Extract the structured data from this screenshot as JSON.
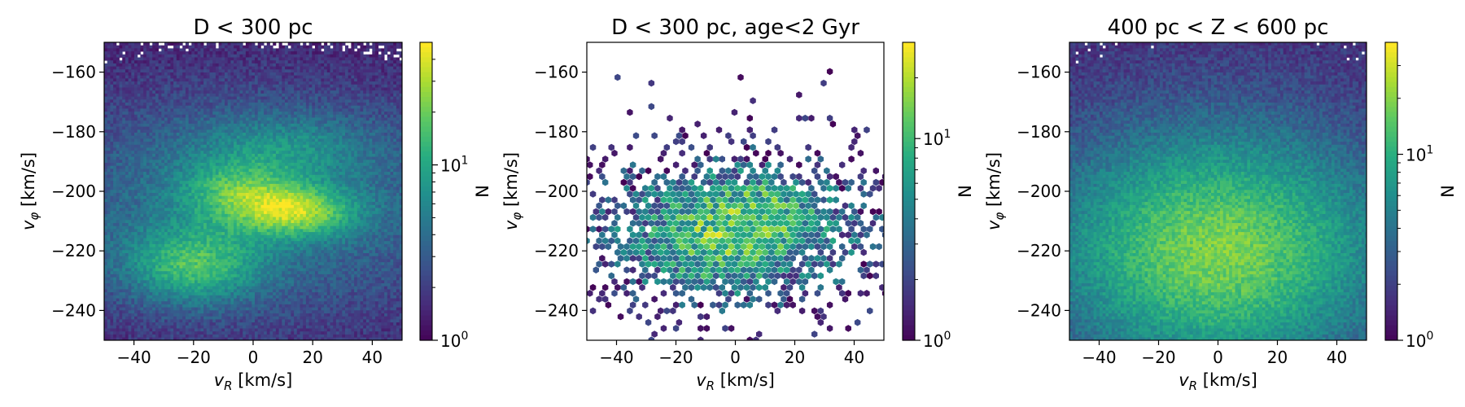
{
  "chart_data": [
    {
      "type": "heatmap",
      "title": "D < 300 pc",
      "xlabel": "v_R [km/s]",
      "ylabel": "v_φ [km/s]",
      "xlim": [
        -50,
        50
      ],
      "ylim": [
        -250,
        -150
      ],
      "xticks": [
        "−40",
        "−20",
        "0",
        "20",
        "40"
      ],
      "xtick_values": [
        -40,
        -20,
        0,
        20,
        40
      ],
      "yticks": [
        "−160",
        "−180",
        "−200",
        "−220",
        "−240"
      ],
      "ytick_values": [
        -160,
        -180,
        -200,
        -220,
        -240
      ],
      "colorbar": {
        "label": "N",
        "scale": "log",
        "ticks": [
          "10",
          "10"
        ],
        "tick_exponents": [
          "0",
          "1"
        ],
        "tick_values": [
          1,
          10
        ],
        "max": 50,
        "colormap": "viridis"
      },
      "features": [
        {
          "vR": 15,
          "vphi": -207,
          "peak_count": 40
        },
        {
          "vR": -20,
          "vphi": -225,
          "peak_count": 25
        },
        {
          "vR": -5,
          "vphi": -200,
          "peak_count": 22
        }
      ]
    },
    {
      "type": "heatmap",
      "title": "D < 300 pc, age<2 Gyr",
      "xlabel": "v_R [km/s]",
      "ylabel": "v_φ [km/s]",
      "xlim": [
        -50,
        50
      ],
      "ylim": [
        -250,
        -150
      ],
      "xticks": [
        "−40",
        "−20",
        "0",
        "20",
        "40"
      ],
      "xtick_values": [
        -40,
        -20,
        0,
        20,
        40
      ],
      "yticks": [
        "−160",
        "−180",
        "−200",
        "−220",
        "−240"
      ],
      "yticks_values": [
        -160,
        -180,
        -200,
        -220,
        -240
      ],
      "colorbar": {
        "label": "N",
        "scale": "log",
        "ticks": [
          "10",
          "10"
        ],
        "tick_exponents": [
          "0",
          "1"
        ],
        "tick_values": [
          1,
          10
        ],
        "max": 30,
        "colormap": "viridis"
      },
      "features": [
        {
          "vR": 10,
          "vphi": -205,
          "peak_count": 25
        },
        {
          "vR": -10,
          "vphi": -225,
          "peak_count": 20
        }
      ]
    },
    {
      "type": "heatmap",
      "title": "400 pc < Z < 600 pc",
      "xlabel": "v_R [km/s]",
      "ylabel": "v_φ [km/s]",
      "xlim": [
        -50,
        50
      ],
      "ylim": [
        -250,
        -150
      ],
      "xticks": [
        "−40",
        "−20",
        "0",
        "20",
        "40"
      ],
      "xtick_values": [
        -40,
        -20,
        0,
        20,
        40
      ],
      "yticks": [
        "−160",
        "−180",
        "−200",
        "−220",
        "−240"
      ],
      "ytick_values": [
        -160,
        -180,
        -200,
        -220,
        -240
      ],
      "colorbar": {
        "label": "N",
        "scale": "log",
        "ticks": [
          "10",
          "10"
        ],
        "tick_exponents": [
          "0",
          "1"
        ],
        "tick_values": [
          1,
          10
        ],
        "max": 40,
        "colormap": "viridis"
      },
      "features": [
        {
          "vR": 0,
          "vphi": -220,
          "peak_count": 30
        }
      ]
    }
  ]
}
